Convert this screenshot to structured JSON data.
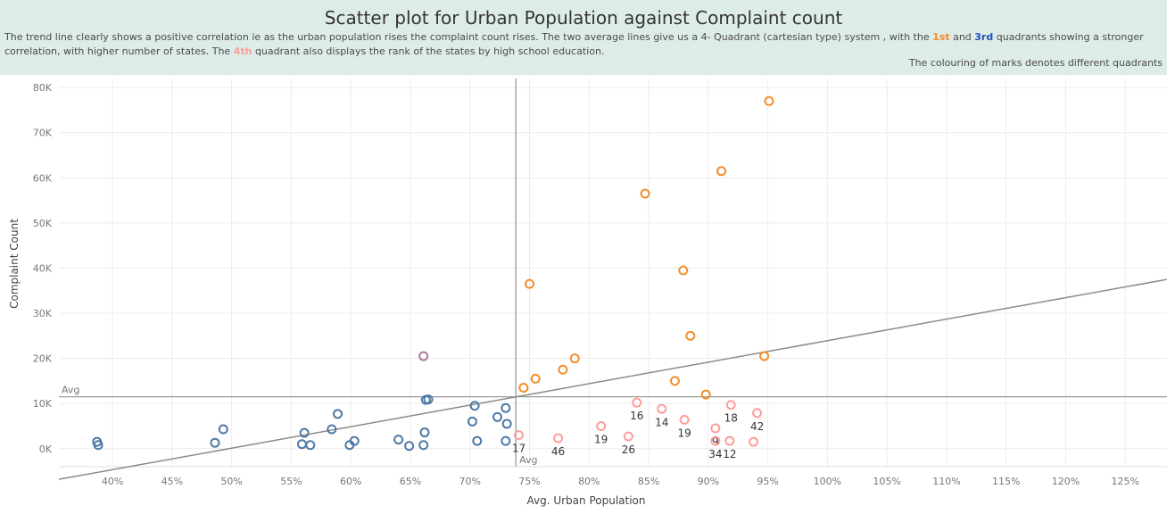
{
  "header": {
    "title": "Scatter plot for Urban Population against Complaint count",
    "desc_a": "The trend line clearly shows a positive correlation ie as the urban population rises the complaint count rises. The two average lines give us a 4- Quadrant (cartesian type) system , with the ",
    "q1": "1st",
    "desc_b": " and ",
    "q3": "3rd",
    "desc_c": " quadrants showing a stronger correlation, with higher number of states. The ",
    "q4": "4th",
    "desc_d": " quadrant also displays the rank of the states by high school education.",
    "note": "The colouring of marks denotes different quadrants"
  },
  "colors": {
    "q1": "#f28e2b",
    "q2": "#b07aa1",
    "q3": "#4e79a7",
    "q4": "#ff9d9a",
    "axis_line": "#9a9a9a",
    "grid": "#ececec"
  },
  "chart_data": {
    "type": "scatter",
    "title": "Scatter plot for Urban Population against Complaint count",
    "xlabel": "Avg. Urban Population",
    "ylabel": "Complaint Count",
    "xlim": [
      0.355,
      1.285
    ],
    "ylim": [
      -4000,
      82000
    ],
    "x_ticks": [
      0.4,
      0.45,
      0.5,
      0.55,
      0.6,
      0.65,
      0.7,
      0.75,
      0.8,
      0.85,
      0.9,
      0.95,
      1.0,
      1.05,
      1.1,
      1.15,
      1.2,
      1.25
    ],
    "x_tick_labels": [
      "40%",
      "45%",
      "50%",
      "55%",
      "60%",
      "65%",
      "70%",
      "75%",
      "80%",
      "85%",
      "90%",
      "95%",
      "100%",
      "105%",
      "110%",
      "115%",
      "120%",
      "125%"
    ],
    "y_ticks": [
      0,
      10000,
      20000,
      30000,
      40000,
      50000,
      60000,
      70000,
      80000
    ],
    "y_tick_labels": [
      "0K",
      "10K",
      "20K",
      "30K",
      "40K",
      "50K",
      "60K",
      "70K",
      "80K"
    ],
    "reference_lines": {
      "x_avg": 0.7385,
      "y_avg": 11500,
      "x_avg_label": "Avg",
      "y_avg_label": "Avg"
    },
    "trend_line": {
      "x": [
        0.355,
        1.285
      ],
      "y": [
        -6800,
        37500
      ]
    },
    "grid": true,
    "series": [
      {
        "quadrant": 1,
        "points": [
          {
            "x": 0.951,
            "y": 77000
          },
          {
            "x": 0.911,
            "y": 61500
          },
          {
            "x": 0.847,
            "y": 56500
          },
          {
            "x": 0.879,
            "y": 39500
          },
          {
            "x": 0.75,
            "y": 36500
          },
          {
            "x": 0.885,
            "y": 25000
          },
          {
            "x": 0.947,
            "y": 20500
          },
          {
            "x": 0.788,
            "y": 20000
          },
          {
            "x": 0.778,
            "y": 17500
          },
          {
            "x": 0.755,
            "y": 15500
          },
          {
            "x": 0.872,
            "y": 15000
          },
          {
            "x": 0.745,
            "y": 13500
          },
          {
            "x": 0.898,
            "y": 12000
          }
        ]
      },
      {
        "quadrant": 2,
        "points": [
          {
            "x": 0.661,
            "y": 20500
          }
        ]
      },
      {
        "quadrant": 3,
        "points": [
          {
            "x": 0.387,
            "y": 1500
          },
          {
            "x": 0.388,
            "y": 800
          },
          {
            "x": 0.486,
            "y": 1300
          },
          {
            "x": 0.493,
            "y": 4300
          },
          {
            "x": 0.559,
            "y": 1000
          },
          {
            "x": 0.561,
            "y": 3500
          },
          {
            "x": 0.566,
            "y": 800
          },
          {
            "x": 0.584,
            "y": 4300
          },
          {
            "x": 0.589,
            "y": 7700
          },
          {
            "x": 0.599,
            "y": 800
          },
          {
            "x": 0.603,
            "y": 1700
          },
          {
            "x": 0.64,
            "y": 2000
          },
          {
            "x": 0.649,
            "y": 600
          },
          {
            "x": 0.661,
            "y": 800
          },
          {
            "x": 0.662,
            "y": 3600
          },
          {
            "x": 0.663,
            "y": 10800
          },
          {
            "x": 0.665,
            "y": 10900
          },
          {
            "x": 0.702,
            "y": 6000
          },
          {
            "x": 0.704,
            "y": 9500
          },
          {
            "x": 0.706,
            "y": 1700
          },
          {
            "x": 0.723,
            "y": 7000
          },
          {
            "x": 0.73,
            "y": 9000
          },
          {
            "x": 0.731,
            "y": 5500
          },
          {
            "x": 0.73,
            "y": 1700
          }
        ]
      },
      {
        "quadrant": 4,
        "points": [
          {
            "x": 0.741,
            "y": 3000,
            "rank": "17"
          },
          {
            "x": 0.774,
            "y": 2300,
            "rank": "46"
          },
          {
            "x": 0.81,
            "y": 5000,
            "rank": "19"
          },
          {
            "x": 0.833,
            "y": 2700,
            "rank": "26"
          },
          {
            "x": 0.84,
            "y": 10200,
            "rank": "16"
          },
          {
            "x": 0.861,
            "y": 8800,
            "rank": "14"
          },
          {
            "x": 0.88,
            "y": 6400,
            "rank": "19"
          },
          {
            "x": 0.906,
            "y": 4500,
            "rank": "9"
          },
          {
            "x": 0.906,
            "y": 1700,
            "rank": "34"
          },
          {
            "x": 0.919,
            "y": 9700,
            "rank": "18"
          },
          {
            "x": 0.918,
            "y": 1700,
            "rank": "12"
          },
          {
            "x": 0.938,
            "y": 1500,
            "rank": ""
          },
          {
            "x": 0.941,
            "y": 7900,
            "rank": "42"
          }
        ]
      }
    ]
  }
}
